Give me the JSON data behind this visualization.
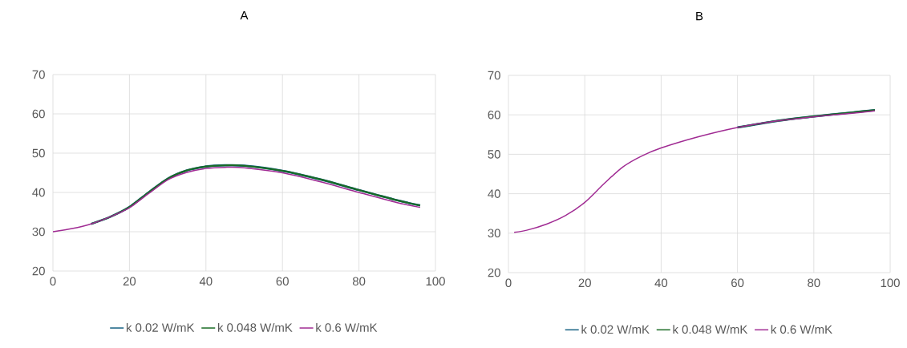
{
  "chart_data": [
    {
      "type": "line",
      "title": "A",
      "xlim": [
        0,
        100
      ],
      "ylim": [
        20,
        70
      ],
      "xticks": [
        0,
        20,
        40,
        60,
        80,
        100
      ],
      "yticks": [
        20,
        30,
        40,
        50,
        60,
        70
      ],
      "grid": true,
      "legend": "bottom",
      "series": [
        {
          "name": "k 0.02 W/mK",
          "color": "#156082",
          "x": [
            10,
            15,
            20,
            25,
            30,
            35,
            40,
            45,
            50,
            60,
            70,
            80,
            90,
            96
          ],
          "values": [
            32,
            33.8,
            36.3,
            40,
            43.5,
            45.6,
            46.6,
            46.9,
            46.8,
            45.5,
            43.3,
            40.6,
            38,
            36.7
          ]
        },
        {
          "name": "k 0.048 W/mK",
          "color": "#196b24",
          "x": [
            10,
            15,
            20,
            25,
            30,
            35,
            40,
            45,
            50,
            60,
            70,
            80,
            90,
            96
          ],
          "values": [
            32,
            33.8,
            36.3,
            40,
            43.5,
            45.6,
            46.6,
            46.9,
            46.8,
            45.5,
            43.3,
            40.6,
            38,
            36.7
          ]
        },
        {
          "name": "k 0.6 W/mK",
          "color": "#a02b93",
          "x": [
            0,
            5,
            10,
            15,
            20,
            25,
            30,
            35,
            40,
            45,
            50,
            60,
            70,
            80,
            90,
            96
          ],
          "values": [
            30,
            30.8,
            32,
            33.8,
            36.1,
            39.7,
            43.2,
            45.1,
            46.1,
            46.4,
            46.3,
            45,
            42.7,
            40,
            37.4,
            36.2
          ]
        }
      ]
    },
    {
      "type": "line",
      "title": "B",
      "xlim": [
        0,
        100
      ],
      "ylim": [
        20,
        70
      ],
      "xticks": [
        0,
        20,
        40,
        60,
        80,
        100
      ],
      "yticks": [
        20,
        30,
        40,
        50,
        60,
        70
      ],
      "grid": true,
      "legend": "bottom",
      "series": [
        {
          "name": "k 0.02 W/mK",
          "color": "#156082",
          "x": [
            60,
            70,
            80,
            90,
            96
          ],
          "values": [
            56.8,
            58.4,
            59.6,
            60.6,
            61.2
          ]
        },
        {
          "name": "k 0.048 W/mK",
          "color": "#196b24",
          "x": [
            60,
            70,
            80,
            90,
            96
          ],
          "values": [
            56.8,
            58.4,
            59.6,
            60.6,
            61.2
          ]
        },
        {
          "name": "k 0.6 W/mK",
          "color": "#a02b93",
          "x": [
            1.5,
            5,
            10,
            15,
            20,
            25,
            30,
            35,
            40,
            50,
            60,
            70,
            80,
            90,
            96
          ],
          "values": [
            30.2,
            30.8,
            32.3,
            34.5,
            37.8,
            42.5,
            46.8,
            49.6,
            51.6,
            54.5,
            56.8,
            58.4,
            59.5,
            60.4,
            61
          ]
        }
      ]
    }
  ]
}
